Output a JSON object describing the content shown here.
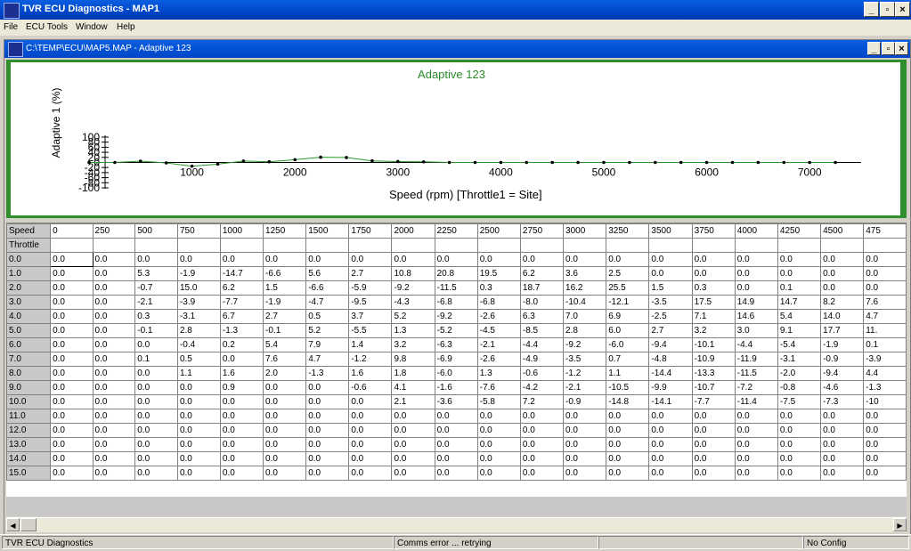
{
  "app": {
    "title": "TVR ECU Diagnostics - MAP1"
  },
  "menu": [
    "File",
    "ECU Tools",
    "Window",
    "Help"
  ],
  "child": {
    "title": "C:\\TEMP\\ECU\\MAP5.MAP - Adaptive 123"
  },
  "chart_data": {
    "type": "line",
    "title": "Adaptive 123",
    "xlabel": "Speed (rpm)  [Throttle1 =     Site]",
    "ylabel": "Adaptive 1 (%)",
    "ylim": [
      -100,
      100
    ],
    "xlim": [
      0,
      7500
    ],
    "y_ticks": [
      "100",
      "80",
      "60",
      "40",
      "20",
      "0",
      "-20",
      "-40",
      "-60",
      "-80",
      "-100"
    ],
    "x_ticks": [
      "1000",
      "2000",
      "3000",
      "4000",
      "5000",
      "6000",
      "7000"
    ],
    "x": [
      0,
      250,
      500,
      750,
      1000,
      1250,
      1500,
      1750,
      2000,
      2250,
      2500,
      2750,
      3000,
      3250,
      3500,
      3750,
      4000,
      4250,
      4500,
      4750,
      5000,
      5250,
      5500,
      5750,
      6000,
      6250,
      6500,
      6750,
      7000,
      7250
    ],
    "values": [
      0,
      0,
      5.3,
      -1.9,
      -14.7,
      -6.6,
      5.6,
      2.7,
      10.8,
      20.8,
      19.5,
      6.2,
      3.6,
      2.5,
      0,
      0,
      0,
      0,
      0,
      0,
      0,
      0,
      0,
      0,
      0,
      0,
      0,
      0,
      0,
      0
    ],
    "line_color": "#2a9a2a",
    "title_color": "#2a8a2a"
  },
  "table": {
    "speed_label": "Speed",
    "throttle_label": "Throttle",
    "speeds": [
      "0",
      "250",
      "500",
      "750",
      "1000",
      "1250",
      "1500",
      "1750",
      "2000",
      "2250",
      "2500",
      "2750",
      "3000",
      "3250",
      "3500",
      "3750",
      "4000",
      "4250",
      "4500",
      "475"
    ],
    "rows": [
      {
        "label": "0.0",
        "cells": [
          "0.0",
          "0.0",
          "0.0",
          "0.0",
          "0.0",
          "0.0",
          "0.0",
          "0.0",
          "0.0",
          "0.0",
          "0.0",
          "0.0",
          "0.0",
          "0.0",
          "0.0",
          "0.0",
          "0.0",
          "0.0",
          "0.0",
          "0.0"
        ]
      },
      {
        "label": "1.0",
        "cells": [
          "0.0",
          "0.0",
          "5.3",
          "-1.9",
          "-14.7",
          "-6.6",
          "5.6",
          "2.7",
          "10.8",
          "20.8",
          "19.5",
          "6.2",
          "3.6",
          "2.5",
          "0.0",
          "0.0",
          "0.0",
          "0.0",
          "0.0",
          "0.0"
        ]
      },
      {
        "label": "2.0",
        "cells": [
          "0.0",
          "0.0",
          "-0.7",
          "15.0",
          "6.2",
          "1.5",
          "-6.6",
          "-5.9",
          "-9.2",
          "-11.5",
          "0.3",
          "18.7",
          "16.2",
          "25.5",
          "1.5",
          "0.3",
          "0.0",
          "0.1",
          "0.0",
          "0.0"
        ]
      },
      {
        "label": "3.0",
        "cells": [
          "0.0",
          "0.0",
          "-2.1",
          "-3.9",
          "-7.7",
          "-1.9",
          "-4.7",
          "-9.5",
          "-4.3",
          "-6.8",
          "-6.8",
          "-8.0",
          "-10.4",
          "-12.1",
          "-3.5",
          "17.5",
          "14.9",
          "14.7",
          "8.2",
          "7.6"
        ]
      },
      {
        "label": "4.0",
        "cells": [
          "0.0",
          "0.0",
          "0.3",
          "-3.1",
          "6.7",
          "2.7",
          "0.5",
          "3.7",
          "5.2",
          "-9.2",
          "-2.6",
          "6.3",
          "7.0",
          "6.9",
          "-2.5",
          "7.1",
          "14.6",
          "5.4",
          "14.0",
          "4.7"
        ]
      },
      {
        "label": "5.0",
        "cells": [
          "0.0",
          "0.0",
          "-0.1",
          "2.8",
          "-1.3",
          "-0.1",
          "5.2",
          "-5.5",
          "1.3",
          "-5.2",
          "-4.5",
          "-8.5",
          "2.8",
          "6.0",
          "2.7",
          "3.2",
          "3.0",
          "9.1",
          "17.7",
          "11."
        ]
      },
      {
        "label": "6.0",
        "cells": [
          "0.0",
          "0.0",
          "0.0",
          "-0.4",
          "0.2",
          "5.4",
          "7.9",
          "1.4",
          "3.2",
          "-6.3",
          "-2.1",
          "-4.4",
          "-9.2",
          "-6.0",
          "-9.4",
          "-10.1",
          "-4.4",
          "-5.4",
          "-1.9",
          "0.1"
        ]
      },
      {
        "label": "7.0",
        "cells": [
          "0.0",
          "0.0",
          "0.1",
          "0.5",
          "0.0",
          "7.6",
          "4.7",
          "-1.2",
          "9.8",
          "-6.9",
          "-2.6",
          "-4.9",
          "-3.5",
          "0.7",
          "-4.8",
          "-10.9",
          "-11.9",
          "-3.1",
          "-0.9",
          "-3.9"
        ]
      },
      {
        "label": "8.0",
        "cells": [
          "0.0",
          "0.0",
          "0.0",
          "1.1",
          "1.6",
          "2.0",
          "-1.3",
          "1.6",
          "1.8",
          "-6.0",
          "1.3",
          "-0.6",
          "-1.2",
          "1.1",
          "-14.4",
          "-13.3",
          "-11.5",
          "-2.0",
          "-9.4",
          "4.4"
        ]
      },
      {
        "label": "9.0",
        "cells": [
          "0.0",
          "0.0",
          "0.0",
          "0.0",
          "0.9",
          "0.0",
          "0.0",
          "-0.6",
          "4.1",
          "-1.6",
          "-7.6",
          "-4.2",
          "-2.1",
          "-10.5",
          "-9.9",
          "-10.7",
          "-7.2",
          "-0.8",
          "-4.6",
          "-1.3"
        ]
      },
      {
        "label": "10.0",
        "cells": [
          "0.0",
          "0.0",
          "0.0",
          "0.0",
          "0.0",
          "0.0",
          "0.0",
          "0.0",
          "2.1",
          "-3.6",
          "-5.8",
          "7.2",
          "-0.9",
          "-14.8",
          "-14.1",
          "-7.7",
          "-11.4",
          "-7.5",
          "-7.3",
          "-10"
        ]
      },
      {
        "label": "11.0",
        "cells": [
          "0.0",
          "0.0",
          "0.0",
          "0.0",
          "0.0",
          "0.0",
          "0.0",
          "0.0",
          "0.0",
          "0.0",
          "0.0",
          "0.0",
          "0.0",
          "0.0",
          "0.0",
          "0.0",
          "0.0",
          "0.0",
          "0.0",
          "0.0"
        ]
      },
      {
        "label": "12.0",
        "cells": [
          "0.0",
          "0.0",
          "0.0",
          "0.0",
          "0.0",
          "0.0",
          "0.0",
          "0.0",
          "0.0",
          "0.0",
          "0.0",
          "0.0",
          "0.0",
          "0.0",
          "0.0",
          "0.0",
          "0.0",
          "0.0",
          "0.0",
          "0.0"
        ]
      },
      {
        "label": "13.0",
        "cells": [
          "0.0",
          "0.0",
          "0.0",
          "0.0",
          "0.0",
          "0.0",
          "0.0",
          "0.0",
          "0.0",
          "0.0",
          "0.0",
          "0.0",
          "0.0",
          "0.0",
          "0.0",
          "0.0",
          "0.0",
          "0.0",
          "0.0",
          "0.0"
        ]
      },
      {
        "label": "14.0",
        "cells": [
          "0.0",
          "0.0",
          "0.0",
          "0.0",
          "0.0",
          "0.0",
          "0.0",
          "0.0",
          "0.0",
          "0.0",
          "0.0",
          "0.0",
          "0.0",
          "0.0",
          "0.0",
          "0.0",
          "0.0",
          "0.0",
          "0.0",
          "0.0"
        ]
      },
      {
        "label": "15.0",
        "cells": [
          "0.0",
          "0.0",
          "0.0",
          "0.0",
          "0.0",
          "0.0",
          "0.0",
          "0.0",
          "0.0",
          "0.0",
          "0.0",
          "0.0",
          "0.0",
          "0.0",
          "0.0",
          "0.0",
          "0.0",
          "0.0",
          "0.0",
          "0.0"
        ]
      }
    ]
  },
  "status": {
    "left": "TVR ECU Diagnostics",
    "middle": "Comms error ... retrying",
    "right": "No Config"
  },
  "window_buttons": {
    "min": "_",
    "restore": "▫",
    "close": "×"
  }
}
